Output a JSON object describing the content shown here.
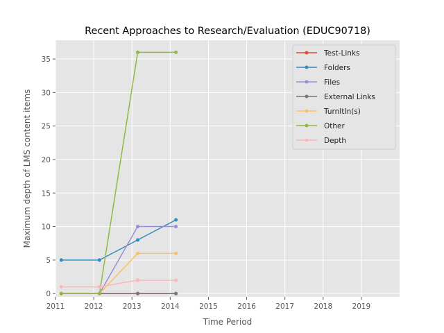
{
  "chart_data": {
    "type": "line",
    "title": "Recent Approaches to Research/Evaluation (EDUC90718)",
    "xlabel": "Time Period",
    "ylabel": "Maximum depth of LMS content items",
    "xlim": [
      2011,
      2020
    ],
    "ylim": [
      -0.5,
      37.8
    ],
    "xticks": [
      2011,
      2012,
      2013,
      2014,
      2015,
      2016,
      2017,
      2018,
      2019
    ],
    "yticks": [
      0,
      5,
      10,
      15,
      20,
      25,
      30,
      35
    ],
    "grid": true,
    "legend_position": "top-right",
    "x": [
      2011.15,
      2012.15,
      2013.15,
      2014.15
    ],
    "series": [
      {
        "name": "Test-Links",
        "color": "#E24A33",
        "values": [
          0,
          0,
          0,
          0
        ]
      },
      {
        "name": "Folders",
        "color": "#348ABD",
        "values": [
          5,
          5,
          8,
          11
        ]
      },
      {
        "name": "Files",
        "color": "#988ED5",
        "values": [
          0,
          0,
          10,
          10
        ]
      },
      {
        "name": "External Links",
        "color": "#777777",
        "values": [
          0,
          0,
          0,
          0
        ]
      },
      {
        "name": "TurnItIn(s)",
        "color": "#FBC15E",
        "values": [
          0,
          0,
          6,
          6
        ]
      },
      {
        "name": "Other",
        "color": "#8EBA42",
        "values": [
          0,
          0,
          36,
          36
        ]
      },
      {
        "name": "Depth",
        "color": "#FFB5B8",
        "values": [
          1,
          1,
          2,
          2
        ]
      }
    ]
  }
}
